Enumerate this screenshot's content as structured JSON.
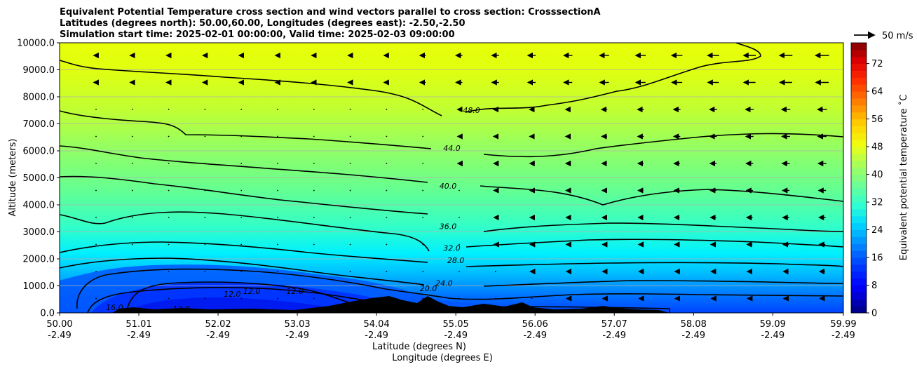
{
  "chart_data": {
    "type": "contour",
    "title_lines": [
      "Equivalent Potential Temperature cross section and wind vectors parallel to cross section: CrosssectionA",
      "Latitudes (degrees north): 50.00,60.00, Longitudes (degrees east): -2.50,-2.50",
      "Simulation start time: 2025-02-01 00:00:00, Valid time: 2025-02-03 09:00:00"
    ],
    "xlabel_lat": "Latitude (degrees N)",
    "xlabel_lon": "Longitude (degrees E)",
    "ylabel": "Altitude (meters)",
    "x_ticks": [
      {
        "lat": "50.00",
        "lon": "-2.49"
      },
      {
        "lat": "51.01",
        "lon": "-2.49"
      },
      {
        "lat": "52.02",
        "lon": "-2.49"
      },
      {
        "lat": "53.03",
        "lon": "-2.49"
      },
      {
        "lat": "54.04",
        "lon": "-2.49"
      },
      {
        "lat": "55.05",
        "lon": "-2.49"
      },
      {
        "lat": "56.06",
        "lon": "-2.49"
      },
      {
        "lat": "57.07",
        "lon": "-2.49"
      },
      {
        "lat": "58.08",
        "lon": "-2.49"
      },
      {
        "lat": "59.09",
        "lon": "-2.49"
      },
      {
        "lat": "59.99",
        "lon": "-2.49"
      }
    ],
    "y_ticks": [
      "0.0",
      "1000.0",
      "2000.0",
      "3000.0",
      "4000.0",
      "5000.0",
      "6000.0",
      "7000.0",
      "8000.0",
      "9000.0",
      "10000.0"
    ],
    "ylim": [
      0,
      10000
    ],
    "colorbar": {
      "label": "Equivalent potential temperature ˚C",
      "ticks": [
        "0",
        "8",
        "16",
        "24",
        "32",
        "40",
        "48",
        "56",
        "64",
        "72"
      ],
      "range": [
        0,
        78
      ]
    },
    "wind_reference": "50 m/s",
    "contour_labels": [
      {
        "text": "48.0",
        "lat": 55.25,
        "alt": 7400
      },
      {
        "text": "44.0",
        "lat": 55.0,
        "alt": 6000
      },
      {
        "text": "40.0",
        "lat": 54.95,
        "alt": 4600
      },
      {
        "text": "36.0",
        "lat": 54.95,
        "alt": 3100
      },
      {
        "text": "32.0",
        "lat": 55.0,
        "alt": 2300
      },
      {
        "text": "28.0",
        "lat": 55.05,
        "alt": 1850
      },
      {
        "text": "24.0",
        "lat": 54.9,
        "alt": 1000
      },
      {
        "text": "20.0",
        "lat": 54.7,
        "alt": 800
      },
      {
        "text": "16.0",
        "lat": 50.7,
        "alt": 100
      },
      {
        "text": "12.0",
        "lat": 51.55,
        "alt": 50
      },
      {
        "text": "12.0",
        "lat": 52.2,
        "alt": 600
      },
      {
        "text": "12.0",
        "lat": 52.45,
        "alt": 700
      },
      {
        "text": "12.0",
        "lat": 53.0,
        "alt": 700
      }
    ]
  }
}
